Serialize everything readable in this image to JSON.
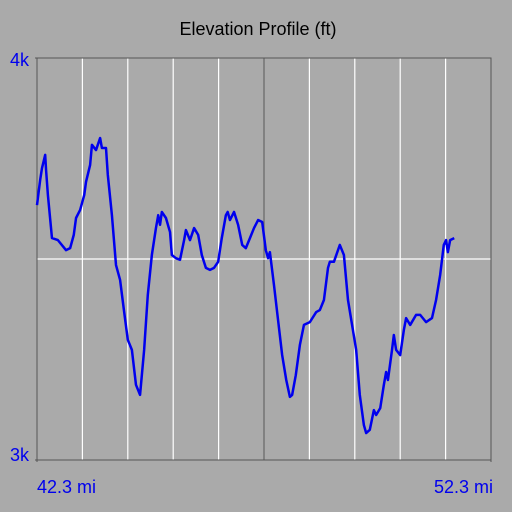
{
  "chart_data": {
    "type": "line",
    "title": "Elevation Profile (ft)",
    "xlim": [
      42.3,
      52.3
    ],
    "xticks": [
      {
        "value": 42.3,
        "label": "42.3 mi"
      },
      {
        "value": 52.3,
        "label": "52.3 mi"
      }
    ],
    "xgridlines": [
      43.3,
      44.3,
      45.3,
      46.3,
      47.3,
      48.3,
      49.3,
      50.3,
      51.3
    ],
    "xmajorgridlines": [
      47.3
    ],
    "ylim": [
      3000,
      4000
    ],
    "yticks": [
      {
        "value": 4000,
        "label": "4k"
      },
      {
        "value": 3000,
        "label": "3k"
      }
    ],
    "ygridlines": [
      3500
    ],
    "grid": true,
    "x": [
      42.3,
      42.37,
      42.41,
      42.48,
      42.5,
      42.54,
      42.63,
      42.76,
      42.94,
      43.03,
      43.11,
      43.16,
      43.25,
      43.34,
      43.38,
      43.47,
      43.51,
      43.6,
      43.69,
      43.73,
      43.82,
      43.86,
      43.95,
      44.04,
      44.13,
      44.22,
      44.3,
      44.39,
      44.48,
      44.57,
      44.66,
      44.74,
      44.83,
      44.92,
      44.97,
      45.01,
      45.05,
      45.14,
      45.23,
      45.27,
      45.36,
      45.45,
      45.54,
      45.58,
      45.67,
      45.76,
      45.85,
      45.93,
      46.02,
      46.11,
      46.2,
      46.29,
      46.37,
      46.46,
      46.5,
      46.55,
      46.64,
      46.73,
      46.82,
      46.9,
      46.99,
      47.08,
      47.17,
      47.26,
      47.34,
      47.39,
      47.43,
      47.52,
      47.61,
      47.7,
      47.79,
      47.87,
      47.92,
      48.0,
      48.09,
      48.18,
      48.31,
      48.45,
      48.53,
      48.62,
      48.71,
      48.75,
      48.84,
      48.97,
      49.06,
      49.15,
      49.24,
      49.33,
      49.41,
      49.5,
      49.55,
      49.63,
      49.72,
      49.77,
      49.86,
      49.94,
      49.99,
      50.03,
      50.12,
      50.16,
      50.21,
      50.3,
      50.38,
      50.43,
      50.52,
      50.65,
      50.74,
      50.87,
      51.0,
      51.09,
      51.18,
      51.26,
      51.31,
      51.35,
      51.4,
      51.49
    ],
    "series": [
      {
        "color": "#0000ee",
        "values": [
          3634,
          3697,
          3726,
          3759,
          3721,
          3659,
          3552,
          3547,
          3522,
          3527,
          3560,
          3602,
          3622,
          3659,
          3692,
          3734,
          3784,
          3771,
          3801,
          3776,
          3776,
          3709,
          3609,
          3485,
          3448,
          3368,
          3299,
          3274,
          3187,
          3162,
          3274,
          3410,
          3510,
          3577,
          3609,
          3585,
          3617,
          3602,
          3567,
          3510,
          3502,
          3498,
          3547,
          3572,
          3547,
          3577,
          3560,
          3510,
          3478,
          3473,
          3478,
          3493,
          3552,
          3609,
          3617,
          3597,
          3617,
          3585,
          3535,
          3527,
          3552,
          3577,
          3597,
          3592,
          3522,
          3502,
          3517,
          3435,
          3348,
          3261,
          3199,
          3157,
          3162,
          3211,
          3286,
          3336,
          3343,
          3368,
          3373,
          3398,
          3478,
          3493,
          3493,
          3535,
          3510,
          3398,
          3336,
          3274,
          3162,
          3087,
          3067,
          3075,
          3124,
          3112,
          3129,
          3187,
          3219,
          3199,
          3274,
          3311,
          3274,
          3261,
          3323,
          3353,
          3336,
          3361,
          3361,
          3343,
          3353,
          3398,
          3460,
          3535,
          3547,
          3517,
          3547,
          3552
        ]
      }
    ]
  }
}
